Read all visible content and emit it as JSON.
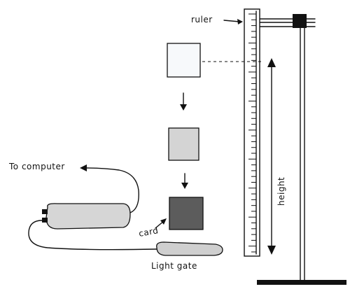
{
  "labels": {
    "ruler": "ruler",
    "to_computer": "To computer",
    "card": "card",
    "light_gate": "Light gate",
    "height": "height"
  },
  "colors": {
    "ink": "#111111",
    "card_start": "#f7f9fb",
    "card_middle": "#d4d4d4",
    "card_end": "#5c5c5c",
    "device": "#d6d6d6",
    "light_gate": "#cfcfcf",
    "clamp": "#111111"
  },
  "ruler": {
    "ticks": 42
  }
}
